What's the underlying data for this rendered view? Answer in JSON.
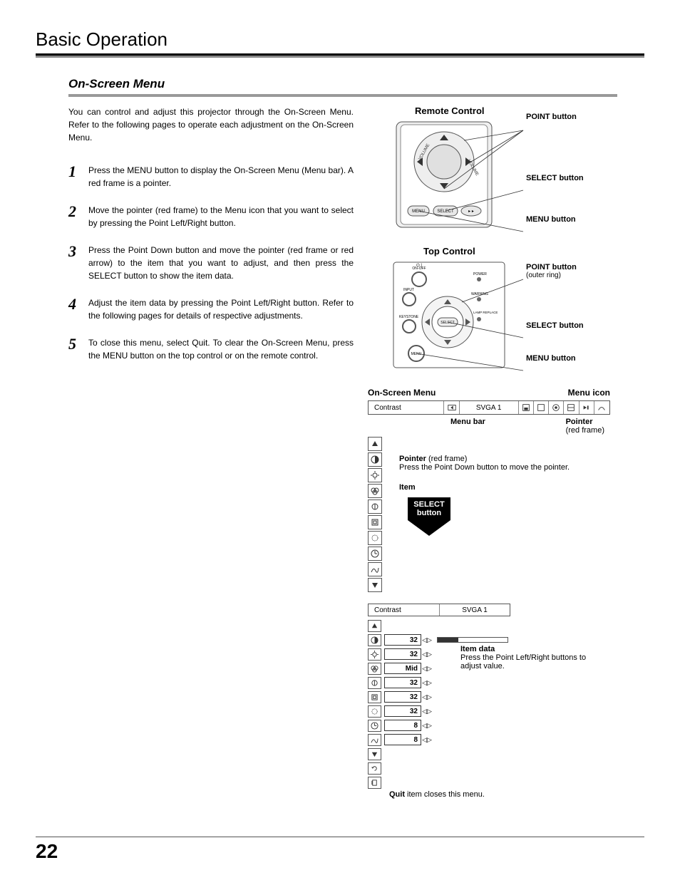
{
  "page_title": "Basic Operation",
  "section_title": "On-Screen Menu",
  "intro": "You can control and adjust this projector through the On-Screen Menu.  Refer to the following pages to operate each adjustment on the On-Screen Menu.",
  "steps": [
    {
      "n": "1",
      "t": "Press the MENU button to display the On-Screen Menu (Menu bar).  A red frame is a pointer."
    },
    {
      "n": "2",
      "t": "Move the pointer (red frame) to the Menu icon that you want to select by pressing the Point Left/Right button."
    },
    {
      "n": "3",
      "t": "Press the Point Down button and move the pointer (red frame or red arrow) to the item that you want to adjust, and then press the SELECT button to show the item data."
    },
    {
      "n": "4",
      "t": "Adjust the item data by pressing the Point Left/Right button. Refer to the following pages for details of respective adjustments."
    },
    {
      "n": "5",
      "t": "To close this menu, select Quit.  To clear the On-Screen Menu, press the MENU button on the top control or on the remote control."
    }
  ],
  "remote": {
    "title": "Remote Control",
    "labels": {
      "point": "POINT button",
      "select": "SELECT button",
      "menu": "MENU button"
    },
    "btn_menu": "MENU",
    "btn_select": "SELECT"
  },
  "top": {
    "title": "Top Control",
    "labels": {
      "point": "POINT button",
      "point_sub": "(outer ring)",
      "select": "SELECT button",
      "menu": "MENU button"
    },
    "txt": {
      "onoff": "ON-OFF",
      "input": "INPUT",
      "keystone": "KEYSTONE",
      "power": "POWER",
      "warning": "WARNING",
      "lamp": "LAMP REPLACE",
      "select": "SELECT",
      "menu": "MENU"
    }
  },
  "osm": {
    "header_left": "On-Screen Menu",
    "header_right": "Menu icon",
    "menubar": {
      "contrast": "Contrast",
      "mode": "SVGA 1"
    },
    "below": {
      "menubar": "Menu bar",
      "pointer": "Pointer",
      "pointer_sub": "(red frame)"
    },
    "pointer_note_label": "Pointer",
    "pointer_note_sub": "(red frame)",
    "pointer_note_text": "Press the Point Down button to move the pointer.",
    "item_label": "Item",
    "select_button": "SELECT button",
    "bar2": {
      "contrast": "Contrast",
      "mode": "SVGA 1"
    },
    "rows": [
      {
        "icon": "up",
        "val": null
      },
      {
        "icon": "contrast",
        "val": "32",
        "slider": true
      },
      {
        "icon": "bright",
        "val": "32"
      },
      {
        "icon": "color",
        "val": "Mid"
      },
      {
        "icon": "tint",
        "val": "32"
      },
      {
        "icon": "sharp",
        "val": "32"
      },
      {
        "icon": "gamma",
        "val": "32"
      },
      {
        "icon": "phase",
        "val": "8"
      },
      {
        "icon": "hpos",
        "val": "8"
      },
      {
        "icon": "down",
        "val": null
      },
      {
        "icon": "reset",
        "val": null
      },
      {
        "icon": "quit",
        "val": null
      }
    ],
    "item_data_label": "Item data",
    "item_data_text": "Press the Point Left/Right buttons to adjust value.",
    "quit_label": "Quit",
    "quit_text": " item closes this menu."
  },
  "page_number": "22",
  "colors": {
    "gray": "#999",
    "border": "#555"
  }
}
